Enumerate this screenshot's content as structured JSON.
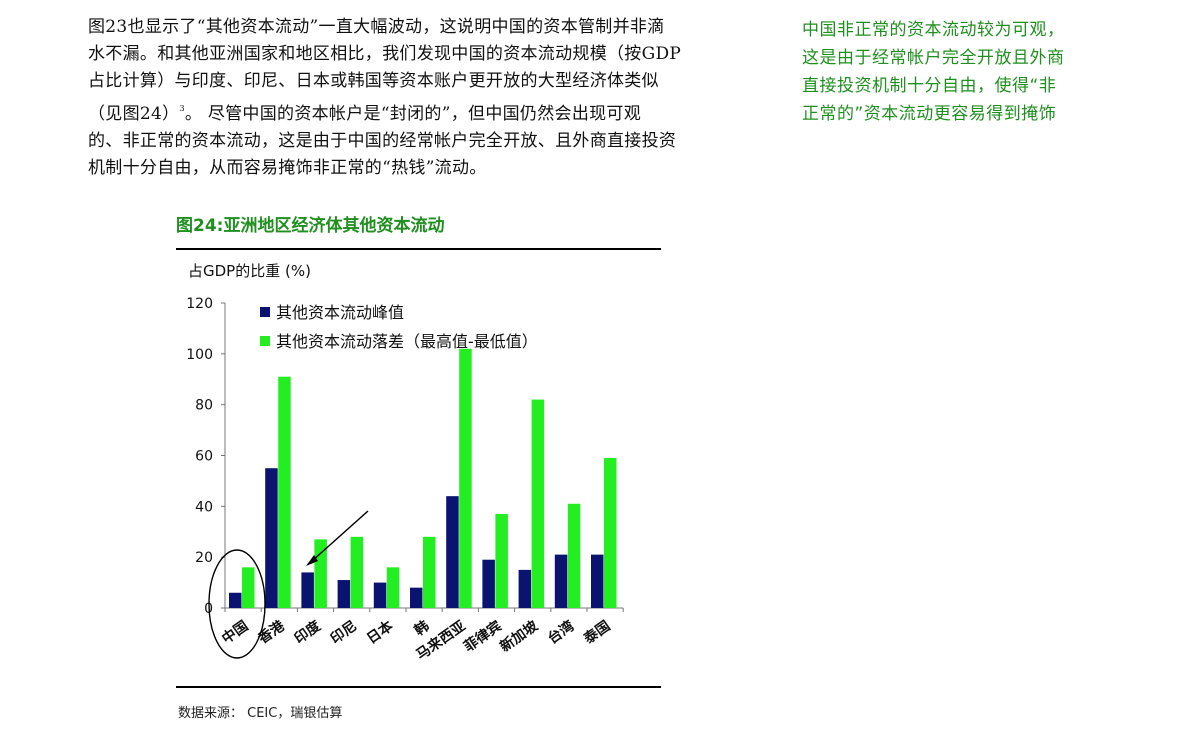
{
  "paragraph": {
    "line1": "图23也显示了“其他资本流动”一直大幅波动，这说明中国的资本管制并非滴",
    "line2": "水不漏。和其他亚洲国家和地区相比，我们发现中国的资本流动规模（按GDP",
    "line3": "占比计算）与印度、印尼、日本或韩国等资本账户更开放的大型经济体类似",
    "line4a": "（见图24）",
    "footnote_mark": "3",
    "line4b": "。 尽管中国的资本帐户是“封闭的”，但中国仍然会出现可观",
    "line5": "的、非正常的资本流动，这是由于中国的经常帐户完全开放、且外商直接投资",
    "line6": "机制十分自由，从而容易掩饰非正常的“热钱”流动。"
  },
  "sidebar": {
    "line1": "中国非正常的资本流动较为可观，",
    "line2": "这是由于经常帐户完全开放且外商",
    "line3": "直接投资机制十分自由，使得“非",
    "line4": "正常的”资本流动更容易得到掩饰"
  },
  "figure": {
    "title": "图24:亚洲地区经济体其他资本流动",
    "source": "数据来源： CEIC，瑞银估算"
  },
  "colors": {
    "series_peak": "#0a1470",
    "series_range": "#22ee22",
    "accent_green": "#1f8f1f"
  },
  "chart_data": {
    "type": "bar",
    "ylabel": "占GDP的比重 (%)",
    "ylim": [
      0,
      120
    ],
    "yticks": [
      0,
      20,
      40,
      60,
      80,
      100,
      120
    ],
    "categories": [
      "中国",
      "香港",
      "印度",
      "印尼",
      "日本",
      "韩",
      "马来西亚",
      "菲律宾",
      "新加坡",
      "台湾",
      "泰国"
    ],
    "series": [
      {
        "name": "其他资本流动峰值",
        "values": [
          6,
          55,
          14,
          11,
          10,
          8,
          44,
          19,
          15,
          21,
          21
        ]
      },
      {
        "name": "其他资本流动落差（最高值-最低值）",
        "values": [
          16,
          91,
          27,
          28,
          16,
          28,
          102,
          37,
          82,
          41,
          59
        ]
      }
    ],
    "legend_position": "top-left",
    "grid": false,
    "annotations": [
      "circle around 中国",
      "arrow pointing to 印度"
    ]
  }
}
